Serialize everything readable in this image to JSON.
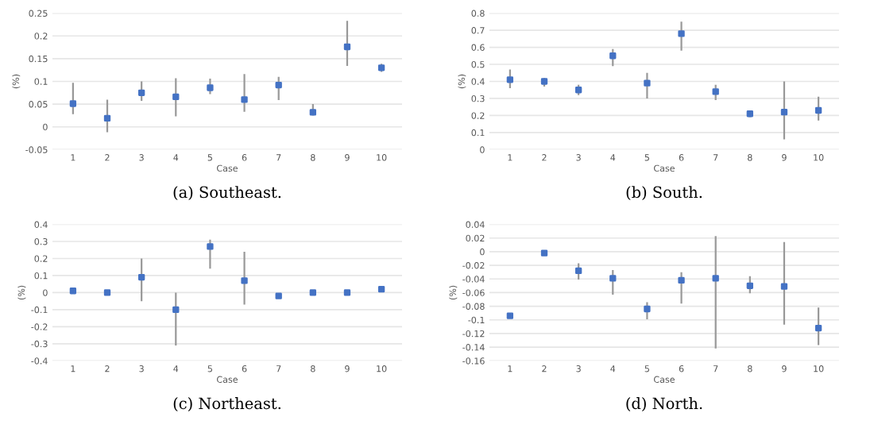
{
  "chart_data": [
    {
      "type": "scatter",
      "title": "(a) Southeast.",
      "xlabel": "Case",
      "ylabel": "(%)",
      "categories": [
        "1",
        "2",
        "3",
        "4",
        "5",
        "6",
        "7",
        "8",
        "9",
        "10"
      ],
      "color": "#4472c4",
      "marker": "square",
      "grid": "y",
      "ylim": [
        -0.05,
        0.25
      ],
      "yticks": [
        -0.05,
        0,
        0.05,
        0.1,
        0.15,
        0.2,
        0.25
      ],
      "values": [
        0.051,
        0.019,
        0.075,
        0.066,
        0.086,
        0.06,
        0.092,
        0.032,
        0.176,
        0.13
      ],
      "errors": [
        [
          0.028,
          0.097
        ],
        [
          -0.012,
          0.06
        ],
        [
          0.057,
          0.1
        ],
        [
          0.023,
          0.107
        ],
        [
          0.072,
          0.106
        ],
        [
          0.033,
          0.116
        ],
        [
          0.059,
          0.11
        ],
        [
          0.025,
          0.05
        ],
        [
          0.134,
          0.233
        ],
        [
          0.121,
          0.139
        ]
      ]
    },
    {
      "type": "scatter",
      "title": "(b) South.",
      "xlabel": "Case",
      "ylabel": "(%)",
      "categories": [
        "1",
        "2",
        "3",
        "4",
        "5",
        "6",
        "7",
        "8",
        "9",
        "10"
      ],
      "color": "#4472c4",
      "marker": "square",
      "grid": "y",
      "ylim": [
        0,
        0.8
      ],
      "yticks": [
        0,
        0.1,
        0.2,
        0.3,
        0.4,
        0.5,
        0.6,
        0.7,
        0.8
      ],
      "values": [
        0.41,
        0.4,
        0.35,
        0.55,
        0.39,
        0.68,
        0.34,
        0.21,
        0.22,
        0.23
      ],
      "errors": [
        [
          0.36,
          0.47
        ],
        [
          0.37,
          0.42
        ],
        [
          0.32,
          0.38
        ],
        [
          0.49,
          0.59
        ],
        [
          0.3,
          0.45
        ],
        [
          0.58,
          0.75
        ],
        [
          0.29,
          0.38
        ],
        [
          0.19,
          0.23
        ],
        [
          0.06,
          0.4
        ],
        [
          0.17,
          0.31
        ]
      ]
    },
    {
      "type": "scatter",
      "title": "(c) Northeast.",
      "xlabel": "Case",
      "ylabel": "(%)",
      "categories": [
        "1",
        "2",
        "3",
        "4",
        "5",
        "6",
        "7",
        "8",
        "9",
        "10"
      ],
      "color": "#4472c4",
      "marker": "square",
      "grid": "y",
      "ylim": [
        -0.4,
        0.4
      ],
      "yticks": [
        -0.4,
        -0.3,
        -0.2,
        -0.1,
        0,
        0.1,
        0.2,
        0.3,
        0.4
      ],
      "values": [
        0.01,
        0.0,
        0.09,
        -0.1,
        0.27,
        0.07,
        -0.02,
        0.0,
        0.0,
        0.02
      ],
      "errors": [
        null,
        null,
        [
          -0.05,
          0.2
        ],
        [
          -0.31,
          0.0
        ],
        [
          0.14,
          0.31
        ],
        [
          -0.07,
          0.24
        ],
        null,
        null,
        null,
        null
      ]
    },
    {
      "type": "scatter",
      "title": "(d) North.",
      "xlabel": "Case",
      "ylabel": "(%)",
      "categories": [
        "1",
        "2",
        "3",
        "4",
        "5",
        "6",
        "7",
        "8",
        "9",
        "10"
      ],
      "color": "#4472c4",
      "marker": "square",
      "grid": "y",
      "ylim": [
        -0.16,
        0.04
      ],
      "yticks": [
        -0.16,
        -0.14,
        -0.12,
        -0.1,
        -0.08,
        -0.06,
        -0.04,
        -0.02,
        0,
        0.02,
        0.04
      ],
      "values": [
        -0.094,
        -0.002,
        -0.028,
        -0.039,
        -0.084,
        -0.042,
        -0.039,
        -0.05,
        -0.051,
        -0.112
      ],
      "errors": [
        null,
        null,
        [
          -0.041,
          -0.017
        ],
        [
          -0.063,
          -0.027
        ],
        [
          -0.099,
          -0.074
        ],
        [
          -0.076,
          -0.03
        ],
        [
          -0.142,
          0.023
        ],
        [
          -0.061,
          -0.036
        ],
        [
          -0.107,
          0.014
        ],
        [
          -0.137,
          -0.082
        ]
      ]
    }
  ]
}
